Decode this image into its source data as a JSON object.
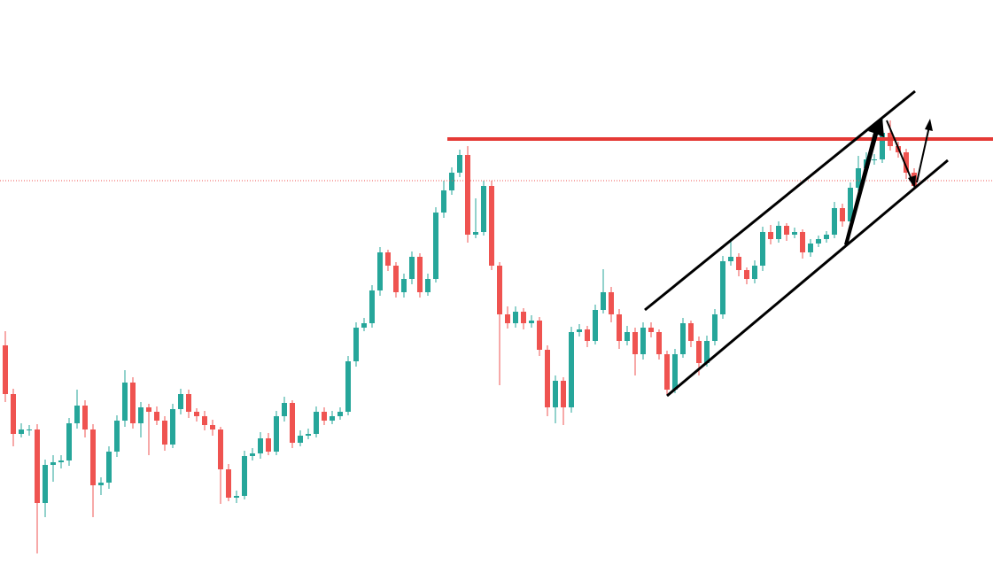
{
  "chart_data": {
    "type": "candlestick",
    "up_color": "#26a69a",
    "down_color": "#ef5350",
    "ylim": [
      0,
      664
    ],
    "ohlc": [
      [
        274,
        290,
        210,
        219
      ],
      [
        219,
        225,
        160,
        174
      ],
      [
        174,
        186,
        170,
        179
      ],
      [
        179,
        184,
        172,
        179
      ],
      [
        179,
        185,
        39,
        96
      ],
      [
        96,
        145,
        80,
        139
      ],
      [
        139,
        150,
        120,
        142
      ],
      [
        142,
        150,
        135,
        144
      ],
      [
        144,
        192,
        138,
        186
      ],
      [
        186,
        224,
        180,
        206
      ],
      [
        206,
        212,
        170,
        179
      ],
      [
        179,
        185,
        80,
        116
      ],
      [
        116,
        125,
        105,
        119
      ],
      [
        119,
        160,
        112,
        154
      ],
      [
        154,
        195,
        148,
        189
      ],
      [
        189,
        246,
        182,
        232
      ],
      [
        232,
        238,
        180,
        186
      ],
      [
        186,
        210,
        170,
        204
      ],
      [
        204,
        208,
        150,
        199
      ],
      [
        199,
        205,
        184,
        189
      ],
      [
        189,
        194,
        155,
        162
      ],
      [
        162,
        208,
        158,
        202
      ],
      [
        202,
        225,
        196,
        219
      ],
      [
        219,
        224,
        192,
        199
      ],
      [
        199,
        203,
        188,
        194
      ],
      [
        194,
        200,
        178,
        184
      ],
      [
        184,
        190,
        172,
        179
      ],
      [
        179,
        182,
        95,
        134
      ],
      [
        134,
        140,
        98,
        102
      ],
      [
        102,
        110,
        96,
        104
      ],
      [
        104,
        155,
        100,
        149
      ],
      [
        149,
        158,
        144,
        152
      ],
      [
        152,
        176,
        146,
        169
      ],
      [
        169,
        175,
        150,
        154
      ],
      [
        154,
        200,
        150,
        194
      ],
      [
        194,
        216,
        188,
        209
      ],
      [
        209,
        212,
        158,
        164
      ],
      [
        164,
        178,
        160,
        172
      ],
      [
        172,
        180,
        168,
        174
      ],
      [
        174,
        205,
        170,
        199
      ],
      [
        199,
        204,
        184,
        189
      ],
      [
        189,
        200,
        185,
        194
      ],
      [
        194,
        204,
        190,
        199
      ],
      [
        199,
        262,
        195,
        256
      ],
      [
        256,
        300,
        250,
        294
      ],
      [
        294,
        305,
        290,
        299
      ],
      [
        299,
        342,
        294,
        336
      ],
      [
        336,
        385,
        330,
        379
      ],
      [
        379,
        382,
        358,
        364
      ],
      [
        364,
        368,
        328,
        334
      ],
      [
        334,
        355,
        328,
        349
      ],
      [
        349,
        380,
        343,
        374
      ],
      [
        374,
        378,
        328,
        334
      ],
      [
        334,
        355,
        330,
        349
      ],
      [
        349,
        430,
        345,
        424
      ],
      [
        424,
        460,
        418,
        449
      ],
      [
        449,
        475,
        444,
        469
      ],
      [
        469,
        495,
        464,
        489
      ],
      [
        489,
        499,
        390,
        399
      ],
      [
        399,
        440,
        395,
        402
      ],
      [
        402,
        460,
        398,
        454
      ],
      [
        454,
        460,
        359,
        364
      ],
      [
        364,
        368,
        229,
        309
      ],
      [
        309,
        318,
        293,
        299
      ],
      [
        299,
        318,
        294,
        312
      ],
      [
        312,
        316,
        292,
        299
      ],
      [
        299,
        308,
        294,
        302
      ],
      [
        302,
        306,
        262,
        269
      ],
      [
        269,
        274,
        194,
        204
      ],
      [
        204,
        240,
        186,
        234
      ],
      [
        234,
        238,
        184,
        204
      ],
      [
        204,
        295,
        198,
        289
      ],
      [
        289,
        298,
        284,
        292
      ],
      [
        292,
        296,
        272,
        279
      ],
      [
        279,
        320,
        275,
        314
      ],
      [
        314,
        360,
        310,
        334
      ],
      [
        334,
        340,
        300,
        309
      ],
      [
        309,
        315,
        270,
        279
      ],
      [
        279,
        296,
        274,
        289
      ],
      [
        289,
        294,
        240,
        264
      ],
      [
        264,
        300,
        258,
        294
      ],
      [
        294,
        300,
        283,
        289
      ],
      [
        289,
        292,
        258,
        264
      ],
      [
        264,
        268,
        218,
        224
      ],
      [
        224,
        270,
        220,
        264
      ],
      [
        264,
        305,
        260,
        299
      ],
      [
        299,
        302,
        272,
        279
      ],
      [
        279,
        284,
        240,
        254
      ],
      [
        254,
        285,
        250,
        279
      ],
      [
        279,
        315,
        274,
        309
      ],
      [
        309,
        375,
        304,
        369
      ],
      [
        369,
        392,
        364,
        374
      ],
      [
        374,
        378,
        352,
        359
      ],
      [
        359,
        362,
        343,
        349
      ],
      [
        349,
        370,
        344,
        364
      ],
      [
        364,
        408,
        358,
        402
      ],
      [
        402,
        410,
        388,
        394
      ],
      [
        394,
        414,
        390,
        409
      ],
      [
        409,
        412,
        392,
        399
      ],
      [
        399,
        407,
        395,
        402
      ],
      [
        402,
        405,
        372,
        379
      ],
      [
        379,
        394,
        374,
        389
      ],
      [
        389,
        398,
        385,
        394
      ],
      [
        394,
        403,
        390,
        399
      ],
      [
        399,
        436,
        395,
        429
      ],
      [
        429,
        434,
        408,
        414
      ],
      [
        414,
        458,
        410,
        452
      ],
      [
        452,
        488,
        448,
        474
      ],
      [
        474,
        492,
        470,
        484
      ],
      [
        484,
        490,
        478,
        484
      ],
      [
        484,
        530,
        480,
        514
      ],
      [
        514,
        528,
        494,
        499
      ],
      [
        499,
        504,
        486,
        492
      ],
      [
        492,
        496,
        462,
        469
      ],
      [
        469,
        474,
        450,
        454
      ]
    ]
  }
}
